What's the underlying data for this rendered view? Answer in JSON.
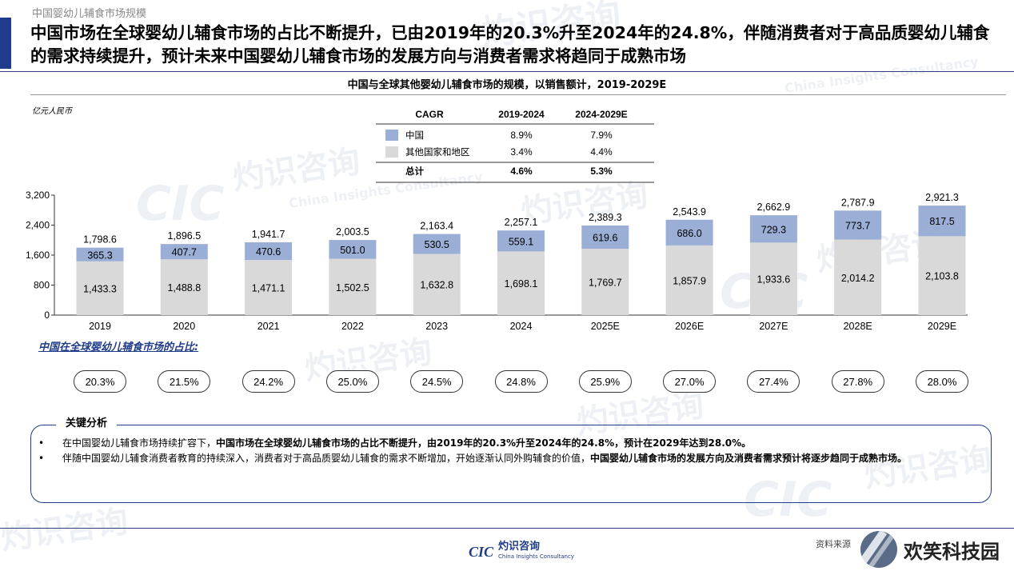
{
  "header": {
    "breadcrumb": "中国婴幼儿辅食市场规模",
    "headline": "中国市场在全球婴幼儿辅食市场的占比不断提升，已由2019年的20.3%升至2024年的24.8%，伴随消费者对于高品质婴幼儿辅食的需求持续提升，预计未来中国婴幼儿辅食市场的发展方向与消费者需求将趋同于成熟市场"
  },
  "chart_data": {
    "type": "bar",
    "stacked": true,
    "title": "中国与全球其他婴幼儿辅食市场的规模，以销售额计，2019-2029E",
    "unit": "亿元人民币",
    "categories": [
      "2019",
      "2020",
      "2021",
      "2022",
      "2023",
      "2024",
      "2025E",
      "2026E",
      "2027E",
      "2028E",
      "2029E"
    ],
    "series": [
      {
        "name": "其他国家和地区",
        "color": "#d9d9d9",
        "values": [
          1433.3,
          1488.8,
          1471.1,
          1502.5,
          1632.8,
          1698.1,
          1769.7,
          1857.9,
          1933.6,
          2014.2,
          2103.8
        ],
        "labels": [
          "1,433.3",
          "1,488.8",
          "1,471.1",
          "1,502.5",
          "1,632.8",
          "1,698.1",
          "1,769.7",
          "1,857.9",
          "1,933.6",
          "2,014.2",
          "2,103.8"
        ]
      },
      {
        "name": "中国",
        "color": "#9aaed6",
        "values": [
          365.3,
          407.7,
          470.6,
          501.0,
          530.5,
          559.1,
          619.6,
          686.0,
          729.3,
          773.7,
          817.5
        ],
        "labels": [
          "365.3",
          "407.7",
          "470.6",
          "501.0",
          "530.5",
          "559.1",
          "619.6",
          "686.0",
          "729.3",
          "773.7",
          "817.5"
        ]
      }
    ],
    "totals": [
      1798.6,
      1896.5,
      1941.7,
      2003.5,
      2163.4,
      2257.1,
      2389.3,
      2543.9,
      2662.9,
      2787.9,
      2921.3
    ],
    "total_labels": [
      "1,798.6",
      "1,896.5",
      "1,941.7",
      "2,003.5",
      "2,163.4",
      "2,257.1",
      "2,389.3",
      "2,543.9",
      "2,662.9",
      "2,787.9",
      "2,921.3"
    ],
    "ylim": [
      0,
      3200
    ],
    "yticks": [
      0,
      800,
      1600,
      2400,
      3200
    ],
    "ytick_labels": [
      "0",
      "800",
      "1,600",
      "2,400",
      "3,200"
    ],
    "cagr_table": {
      "headers": [
        "CAGR",
        "2019-2024",
        "2024-2029E"
      ],
      "rows": [
        {
          "label": "中国",
          "v1": "8.9%",
          "v2": "7.9%",
          "swatch": "#9aaed6"
        },
        {
          "label": "其他国家和地区",
          "v1": "3.4%",
          "v2": "4.4%",
          "swatch": "#d9d9d9"
        },
        {
          "label": "总计",
          "v1": "4.6%",
          "v2": "5.3%",
          "swatch": ""
        }
      ]
    },
    "share_label": "中国在全球婴幼儿辅食市场的占比:",
    "shares": [
      "20.3%",
      "21.5%",
      "24.2%",
      "25.0%",
      "24.5%",
      "24.8%",
      "25.9%",
      "27.0%",
      "27.4%",
      "27.8%",
      "28.0%"
    ]
  },
  "analysis": {
    "title": "关键分析",
    "bullets": [
      {
        "plain": "在中国婴幼儿辅食市场持续扩容下，",
        "bold": "中国市场在全球婴幼儿辅食市场的占比不断提升",
        "tail": "，由2019年的20.3%升至2024年的24.8%，预计在2029年达到28.0%。"
      },
      {
        "plain": "伴随中国婴幼儿辅食消费者教育的持续深入，消费者对于高品质婴幼儿辅食的需求不断增加，开始逐渐认同外购辅食的价值，",
        "bold": "中国婴幼儿辅食市场的发展方向及消费者需求预计将逐步趋同于成熟市场。",
        "tail": ""
      }
    ]
  },
  "footer": {
    "logo_mark": "CIC",
    "logo_cn": "灼识咨询",
    "logo_en": "China Insights Consultancy",
    "source": "资料来源",
    "badge_text": "欢笑科技园"
  },
  "watermark": {
    "cn": "灼识咨询",
    "en": "China Insights Consultancy",
    "mark": "CIC"
  }
}
